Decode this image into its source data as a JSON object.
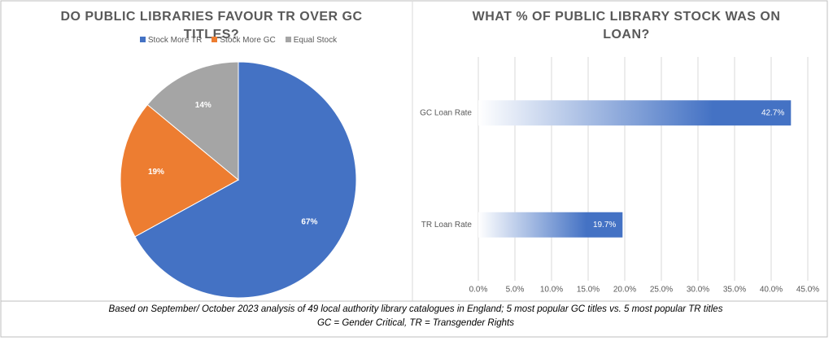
{
  "chart_data": [
    {
      "type": "pie",
      "title": "DO PUBLIC LIBRARIES FAVOUR TR OVER GC TITLES?",
      "categories": [
        "Stock More TR",
        "Stock More GC",
        "Equal Stock"
      ],
      "values": [
        67,
        19,
        14
      ],
      "value_labels": [
        "67%",
        "19%",
        "14%"
      ],
      "colors": [
        "#4472c4",
        "#ed7d31",
        "#a5a5a5"
      ],
      "legend": "top"
    },
    {
      "type": "hbar",
      "title": "WHAT % OF  PUBLIC LIBRARY STOCK WAS ON LOAN?",
      "categories": [
        "GC Loan Rate",
        "TR Loan Rate"
      ],
      "values": [
        42.7,
        19.7
      ],
      "value_labels": [
        "42.7%",
        "19.7%"
      ],
      "color": "#4472c4",
      "xlim": [
        0,
        45
      ],
      "xticks": [
        {
          "value": 0,
          "label": "0.0%"
        },
        {
          "value": 5,
          "label": "5.0%"
        },
        {
          "value": 10,
          "label": "10.0%"
        },
        {
          "value": 15,
          "label": "15.0%"
        },
        {
          "value": 20,
          "label": "20.0%"
        },
        {
          "value": 25,
          "label": "25.0%"
        },
        {
          "value": 30,
          "label": "30.0%"
        },
        {
          "value": 35,
          "label": "35.0%"
        },
        {
          "value": 40,
          "label": "40.0%"
        },
        {
          "value": 45,
          "label": "45.0%"
        }
      ],
      "grid": true
    }
  ],
  "footer": [
    "Based on September/ October 2023 analysis of 49 local authority library catalogues in England; 5 most popular GC titles vs. 5 most popular TR titles",
    "GC = Gender Critical, TR  = Transgender Rights"
  ]
}
